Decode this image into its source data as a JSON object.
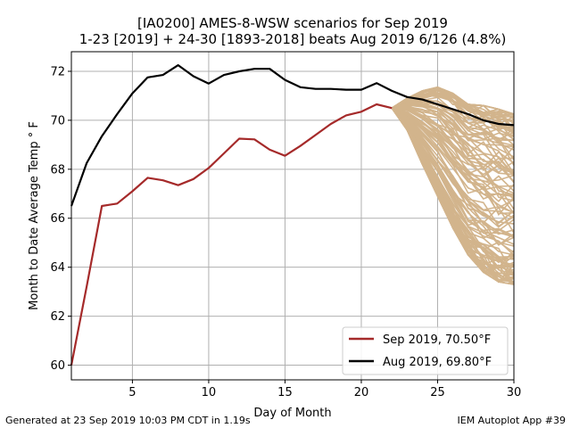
{
  "chart_data": {
    "type": "line",
    "title_line1": "[IA0200] AMES-8-WSW scenarios for Sep 2019",
    "title_line2": "1-23 [2019] + 24-30 [1893-2018] beats Aug 2019 6/126 (4.8%)",
    "xlabel": "Day of Month",
    "ylabel": "Month to Date Average Temp ° F",
    "xlim": [
      1,
      30
    ],
    "ylim": [
      59.4,
      72.8
    ],
    "xticks": [
      5,
      10,
      15,
      20,
      25,
      30
    ],
    "yticks": [
      60,
      62,
      64,
      66,
      68,
      70,
      72
    ],
    "grid": true,
    "legend_position": "bottom-right",
    "series": [
      {
        "name": "Sep 2019, 70.50°F",
        "color": "#a52a2a",
        "x": [
          1,
          2,
          3,
          4,
          5,
          6,
          7,
          8,
          9,
          10,
          11,
          12,
          13,
          14,
          15,
          16,
          17,
          18,
          19,
          20,
          21,
          22
        ],
        "y": [
          60.0,
          63.2,
          66.5,
          66.6,
          67.1,
          67.65,
          67.55,
          67.35,
          67.6,
          68.05,
          68.65,
          69.25,
          69.22,
          68.8,
          68.55,
          68.95,
          69.4,
          69.85,
          70.2,
          70.35,
          70.65,
          70.5
        ]
      },
      {
        "name": "Aug 2019, 69.80°F",
        "color": "#000000",
        "x": [
          1,
          2,
          3,
          4,
          5,
          6,
          7,
          8,
          9,
          10,
          11,
          12,
          13,
          14,
          15,
          16,
          17,
          18,
          19,
          20,
          21,
          22,
          23,
          24,
          25,
          26,
          27,
          28,
          29,
          30
        ],
        "y": [
          66.5,
          68.25,
          69.35,
          70.25,
          71.1,
          71.75,
          71.85,
          72.25,
          71.8,
          71.5,
          71.85,
          72.0,
          72.1,
          72.1,
          71.65,
          71.35,
          71.28,
          71.28,
          71.25,
          71.25,
          71.52,
          71.2,
          70.95,
          70.85,
          70.65,
          70.45,
          70.25,
          70.0,
          69.85,
          69.8
        ]
      }
    ],
    "scenarios": {
      "color": "#d2b48c",
      "x": [
        22,
        23,
        24,
        25,
        26,
        27,
        28,
        29,
        30
      ],
      "envelope_upper": [
        70.5,
        70.9,
        71.2,
        71.35,
        71.1,
        70.65,
        70.6,
        70.45,
        70.25
      ],
      "envelope_lower": [
        70.5,
        69.6,
        68.2,
        66.9,
        65.6,
        64.5,
        63.8,
        63.4,
        63.3
      ],
      "count": 126
    }
  },
  "footer": {
    "left": "Generated at 23 Sep 2019 10:03 PM CDT in 1.19s",
    "right": "IEM Autoplot App #39"
  }
}
